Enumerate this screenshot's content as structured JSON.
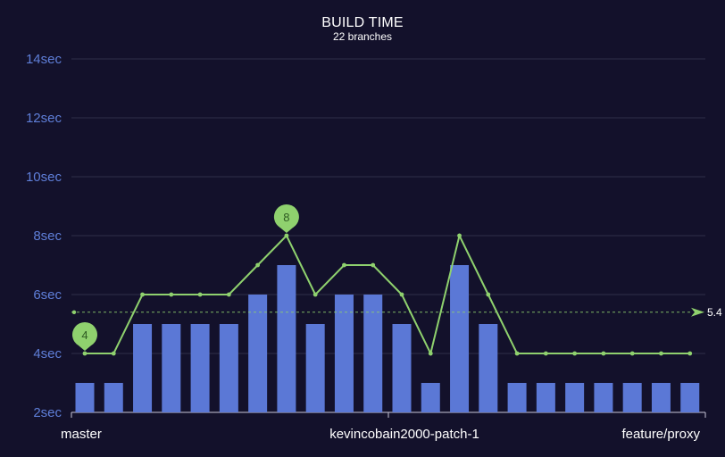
{
  "chart_data": {
    "type": "bar",
    "title": "BUILD TIME",
    "subtitle": "22 branches",
    "xlabel": "",
    "ylabel": "",
    "ylim": [
      2,
      14
    ],
    "y_ticks": [
      2,
      4,
      6,
      8,
      10,
      12,
      14
    ],
    "y_tick_suffix": "sec",
    "x_tick_labels": [
      "master",
      "kevincobain2000-patch-1",
      "feature/proxy"
    ],
    "bar_count": 22,
    "bar_values": [
      3,
      3,
      5,
      5,
      5,
      5,
      6,
      7,
      5,
      6,
      6,
      5,
      3,
      7,
      5,
      3,
      3,
      3,
      3,
      3,
      3,
      3
    ],
    "line_values": [
      4,
      4,
      6,
      6,
      6,
      6,
      7,
      8,
      6,
      7,
      7,
      6,
      4,
      8,
      6,
      4,
      4,
      4,
      4,
      4,
      4,
      4
    ],
    "average": 5.4,
    "average_label": "5.4",
    "min_marker": {
      "label": "4",
      "index": 0,
      "value": 4
    },
    "max_marker": {
      "label": "8",
      "index": 7,
      "value": 8
    },
    "grid": true,
    "colors": {
      "background": "#13112b",
      "bar": "#5b78d6",
      "line": "#8fd16e",
      "grid": "#2f2f4a",
      "axis_label": "#5f7fd9",
      "text": "#ffffff",
      "marker_text": "#2e5a22"
    }
  }
}
